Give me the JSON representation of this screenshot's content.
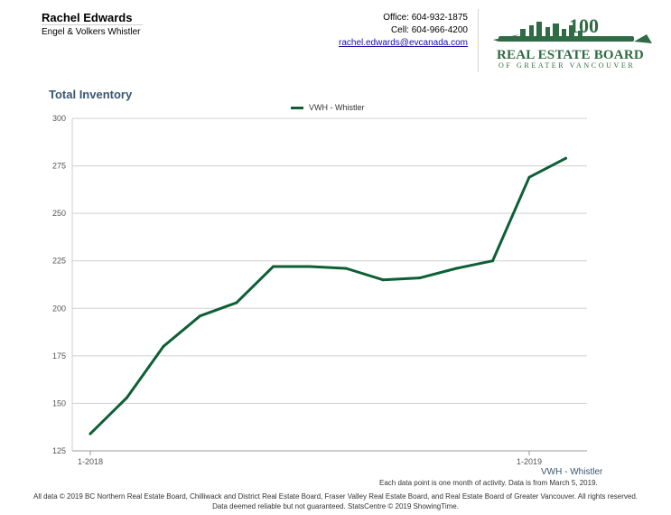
{
  "agent": {
    "name": "Rachel Edwards",
    "company": "Engel & Volkers Whistler"
  },
  "contact": {
    "office": "Office: 604-932-1875",
    "cell": "Cell: 604-966-4200",
    "email": "rachel.edwards@evcanada.com"
  },
  "logo": {
    "title": "REAL ESTATE BOARD",
    "subtitle": "OF GREATER VANCOUVER",
    "badge_number": "100"
  },
  "chart_data": {
    "type": "line",
    "title": "Total Inventory",
    "xlabel": "",
    "ylabel": "",
    "ylim": [
      125,
      300
    ],
    "yticks": [
      125,
      150,
      175,
      200,
      225,
      250,
      275,
      300
    ],
    "x_tick_labels": [
      {
        "index": 0,
        "label": "1-2018"
      },
      {
        "index": 12,
        "label": "1-2019"
      }
    ],
    "grid": true,
    "legend_position": "top-center",
    "series": [
      {
        "name": "VWH - Whistler",
        "color": "#0d5f36",
        "x": [
          "1-2018",
          "2-2018",
          "3-2018",
          "4-2018",
          "5-2018",
          "6-2018",
          "7-2018",
          "8-2018",
          "9-2018",
          "10-2018",
          "11-2018",
          "12-2018",
          "1-2019",
          "2-2019"
        ],
        "values": [
          134,
          153,
          180,
          196,
          203,
          222,
          222,
          221,
          215,
          216,
          221,
          225,
          269,
          279
        ]
      }
    ]
  },
  "series_footer_label": "VWH - Whistler",
  "note": "Each data point is one month of activity. Data is from March 5, 2019.",
  "footer": {
    "line1": "All data © 2019 BC Northern Real Estate Board, Chilliwack and District Real Estate Board, Fraser Valley Real Estate Board, and Real Estate Board of Greater Vancouver. All rights reserved.",
    "line2": "Data deemed reliable but not guaranteed. StatsCentre © 2019 ShowingTime."
  }
}
